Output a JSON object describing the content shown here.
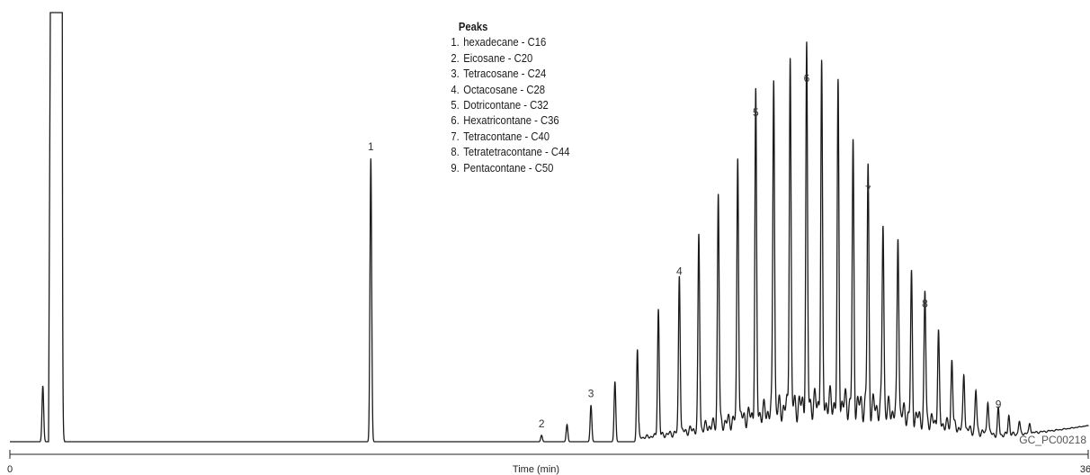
{
  "chart_data": {
    "type": "line",
    "title": "",
    "xlabel": "Time (min)",
    "ylabel": "",
    "xlim": [
      0,
      36
    ],
    "x_tick_labels": [
      "0",
      "36"
    ],
    "grid": false,
    "legend": {
      "title": "Peaks",
      "placement": "top-center",
      "items": [
        {
          "num": "1.",
          "label": "hexadecane - C16"
        },
        {
          "num": "2.",
          "label": "Eicosane - C20"
        },
        {
          "num": "3.",
          "label": "Tetracosane - C24"
        },
        {
          "num": "4.",
          "label": "Octacosane - C28"
        },
        {
          "num": "5.",
          "label": "Dotricontane - C32"
        },
        {
          "num": "6.",
          "label": "Hexatricontane - C36"
        },
        {
          "num": "7.",
          "label": "Tetracontane - C40"
        },
        {
          "num": "8.",
          "label": "Tetratetracontane - C44"
        },
        {
          "num": "9.",
          "label": "Pentacontane - C50"
        }
      ]
    },
    "series": [
      {
        "peaks": [
          {
            "t": 1.1,
            "h": 0.13
          },
          {
            "t": 1.35,
            "h": 1.0,
            "solvent": true
          },
          {
            "t": 1.75,
            "h": 0.98,
            "solvent": true
          },
          {
            "t": 12.05,
            "h": 0.66,
            "label": "1"
          },
          {
            "t": 17.75,
            "h": 0.015,
            "label": "2"
          },
          {
            "t": 18.6,
            "h": 0.04
          },
          {
            "t": 19.4,
            "h": 0.085,
            "label": "3"
          },
          {
            "t": 20.2,
            "h": 0.14
          },
          {
            "t": 20.95,
            "h": 0.215
          },
          {
            "t": 21.65,
            "h": 0.295
          },
          {
            "t": 22.35,
            "h": 0.37,
            "label": "4"
          },
          {
            "t": 23.0,
            "h": 0.45
          },
          {
            "t": 23.65,
            "h": 0.54
          },
          {
            "t": 24.3,
            "h": 0.62
          },
          {
            "t": 24.9,
            "h": 0.74,
            "label": "5"
          },
          {
            "t": 25.5,
            "h": 0.79
          },
          {
            "t": 26.05,
            "h": 0.83
          },
          {
            "t": 26.6,
            "h": 0.82,
            "label": "6"
          },
          {
            "t": 27.1,
            "h": 0.78
          },
          {
            "t": 27.65,
            "h": 0.72
          },
          {
            "t": 28.15,
            "h": 0.59
          },
          {
            "t": 28.65,
            "h": 0.56,
            "label": "7"
          },
          {
            "t": 29.15,
            "h": 0.44
          },
          {
            "t": 29.65,
            "h": 0.42
          },
          {
            "t": 30.1,
            "h": 0.32
          },
          {
            "t": 30.55,
            "h": 0.295,
            "label": "8"
          },
          {
            "t": 31.0,
            "h": 0.21
          },
          {
            "t": 31.45,
            "h": 0.16
          },
          {
            "t": 31.85,
            "h": 0.13
          },
          {
            "t": 32.25,
            "h": 0.095
          },
          {
            "t": 32.65,
            "h": 0.08
          },
          {
            "t": 33.0,
            "h": 0.06,
            "label": "9"
          },
          {
            "t": 33.35,
            "h": 0.045
          },
          {
            "t": 33.7,
            "h": 0.03
          },
          {
            "t": 34.05,
            "h": 0.022
          }
        ]
      }
    ]
  },
  "catalog_id": "GC_PC00218"
}
